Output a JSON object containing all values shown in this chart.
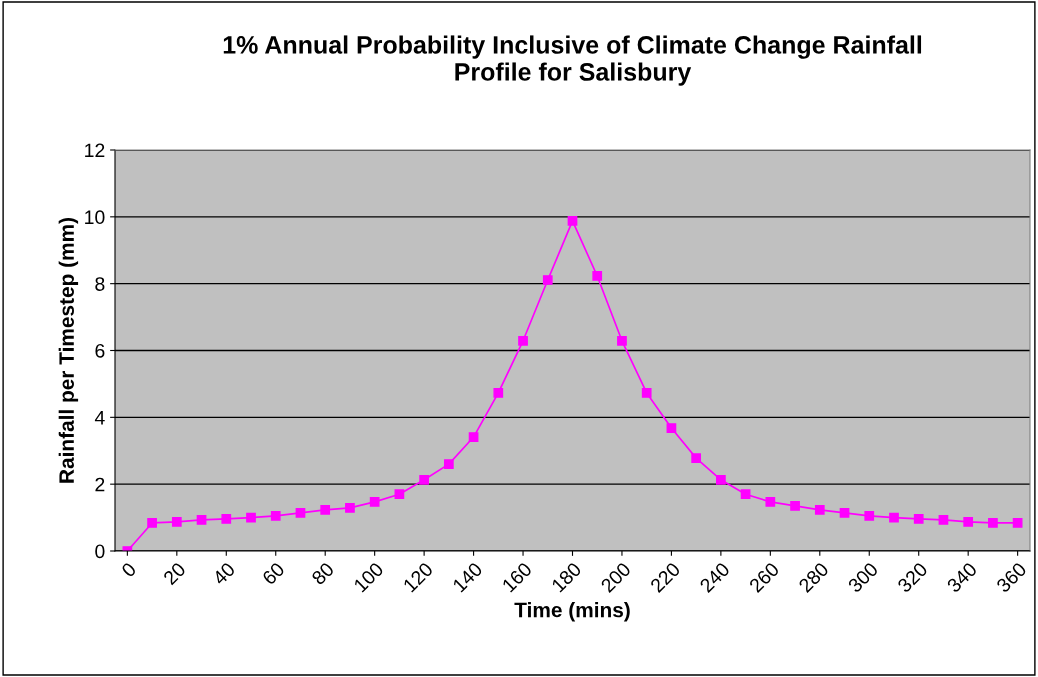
{
  "chart_data": {
    "type": "line",
    "title": "1% Annual Probability Inclusive of Climate Change Rainfall\nProfile for Salisbury",
    "xlabel": "Time (mins)",
    "ylabel": "Rainfall per Timestep (mm)",
    "x": [
      0,
      10,
      20,
      30,
      40,
      50,
      60,
      70,
      80,
      90,
      100,
      110,
      120,
      130,
      140,
      150,
      160,
      170,
      180,
      190,
      200,
      210,
      220,
      230,
      240,
      250,
      260,
      270,
      280,
      290,
      300,
      310,
      320,
      330,
      340,
      350,
      360
    ],
    "series": [
      {
        "color": "#ff00ff",
        "values": [
          0,
          0.84,
          0.87,
          0.93,
          0.96,
          1.0,
          1.05,
          1.14,
          1.23,
          1.29,
          1.47,
          1.7,
          2.13,
          2.6,
          3.41,
          4.73,
          6.29,
          8.11,
          9.88,
          8.23,
          6.29,
          4.73,
          3.68,
          2.78,
          2.13,
          1.7,
          1.47,
          1.35,
          1.23,
          1.14,
          1.05,
          1.0,
          0.96,
          0.93,
          0.87,
          0.84,
          0.84
        ]
      }
    ],
    "xlim": [
      -5,
      365
    ],
    "xticks": [
      0,
      20,
      40,
      60,
      80,
      100,
      120,
      140,
      160,
      180,
      200,
      220,
      240,
      260,
      280,
      300,
      320,
      340,
      360
    ],
    "ylim": [
      0,
      12
    ],
    "yticks": [
      0,
      2,
      4,
      6,
      8,
      10,
      12
    ],
    "grid": "y",
    "legend": false,
    "marker": "square",
    "line_style": "solid"
  }
}
